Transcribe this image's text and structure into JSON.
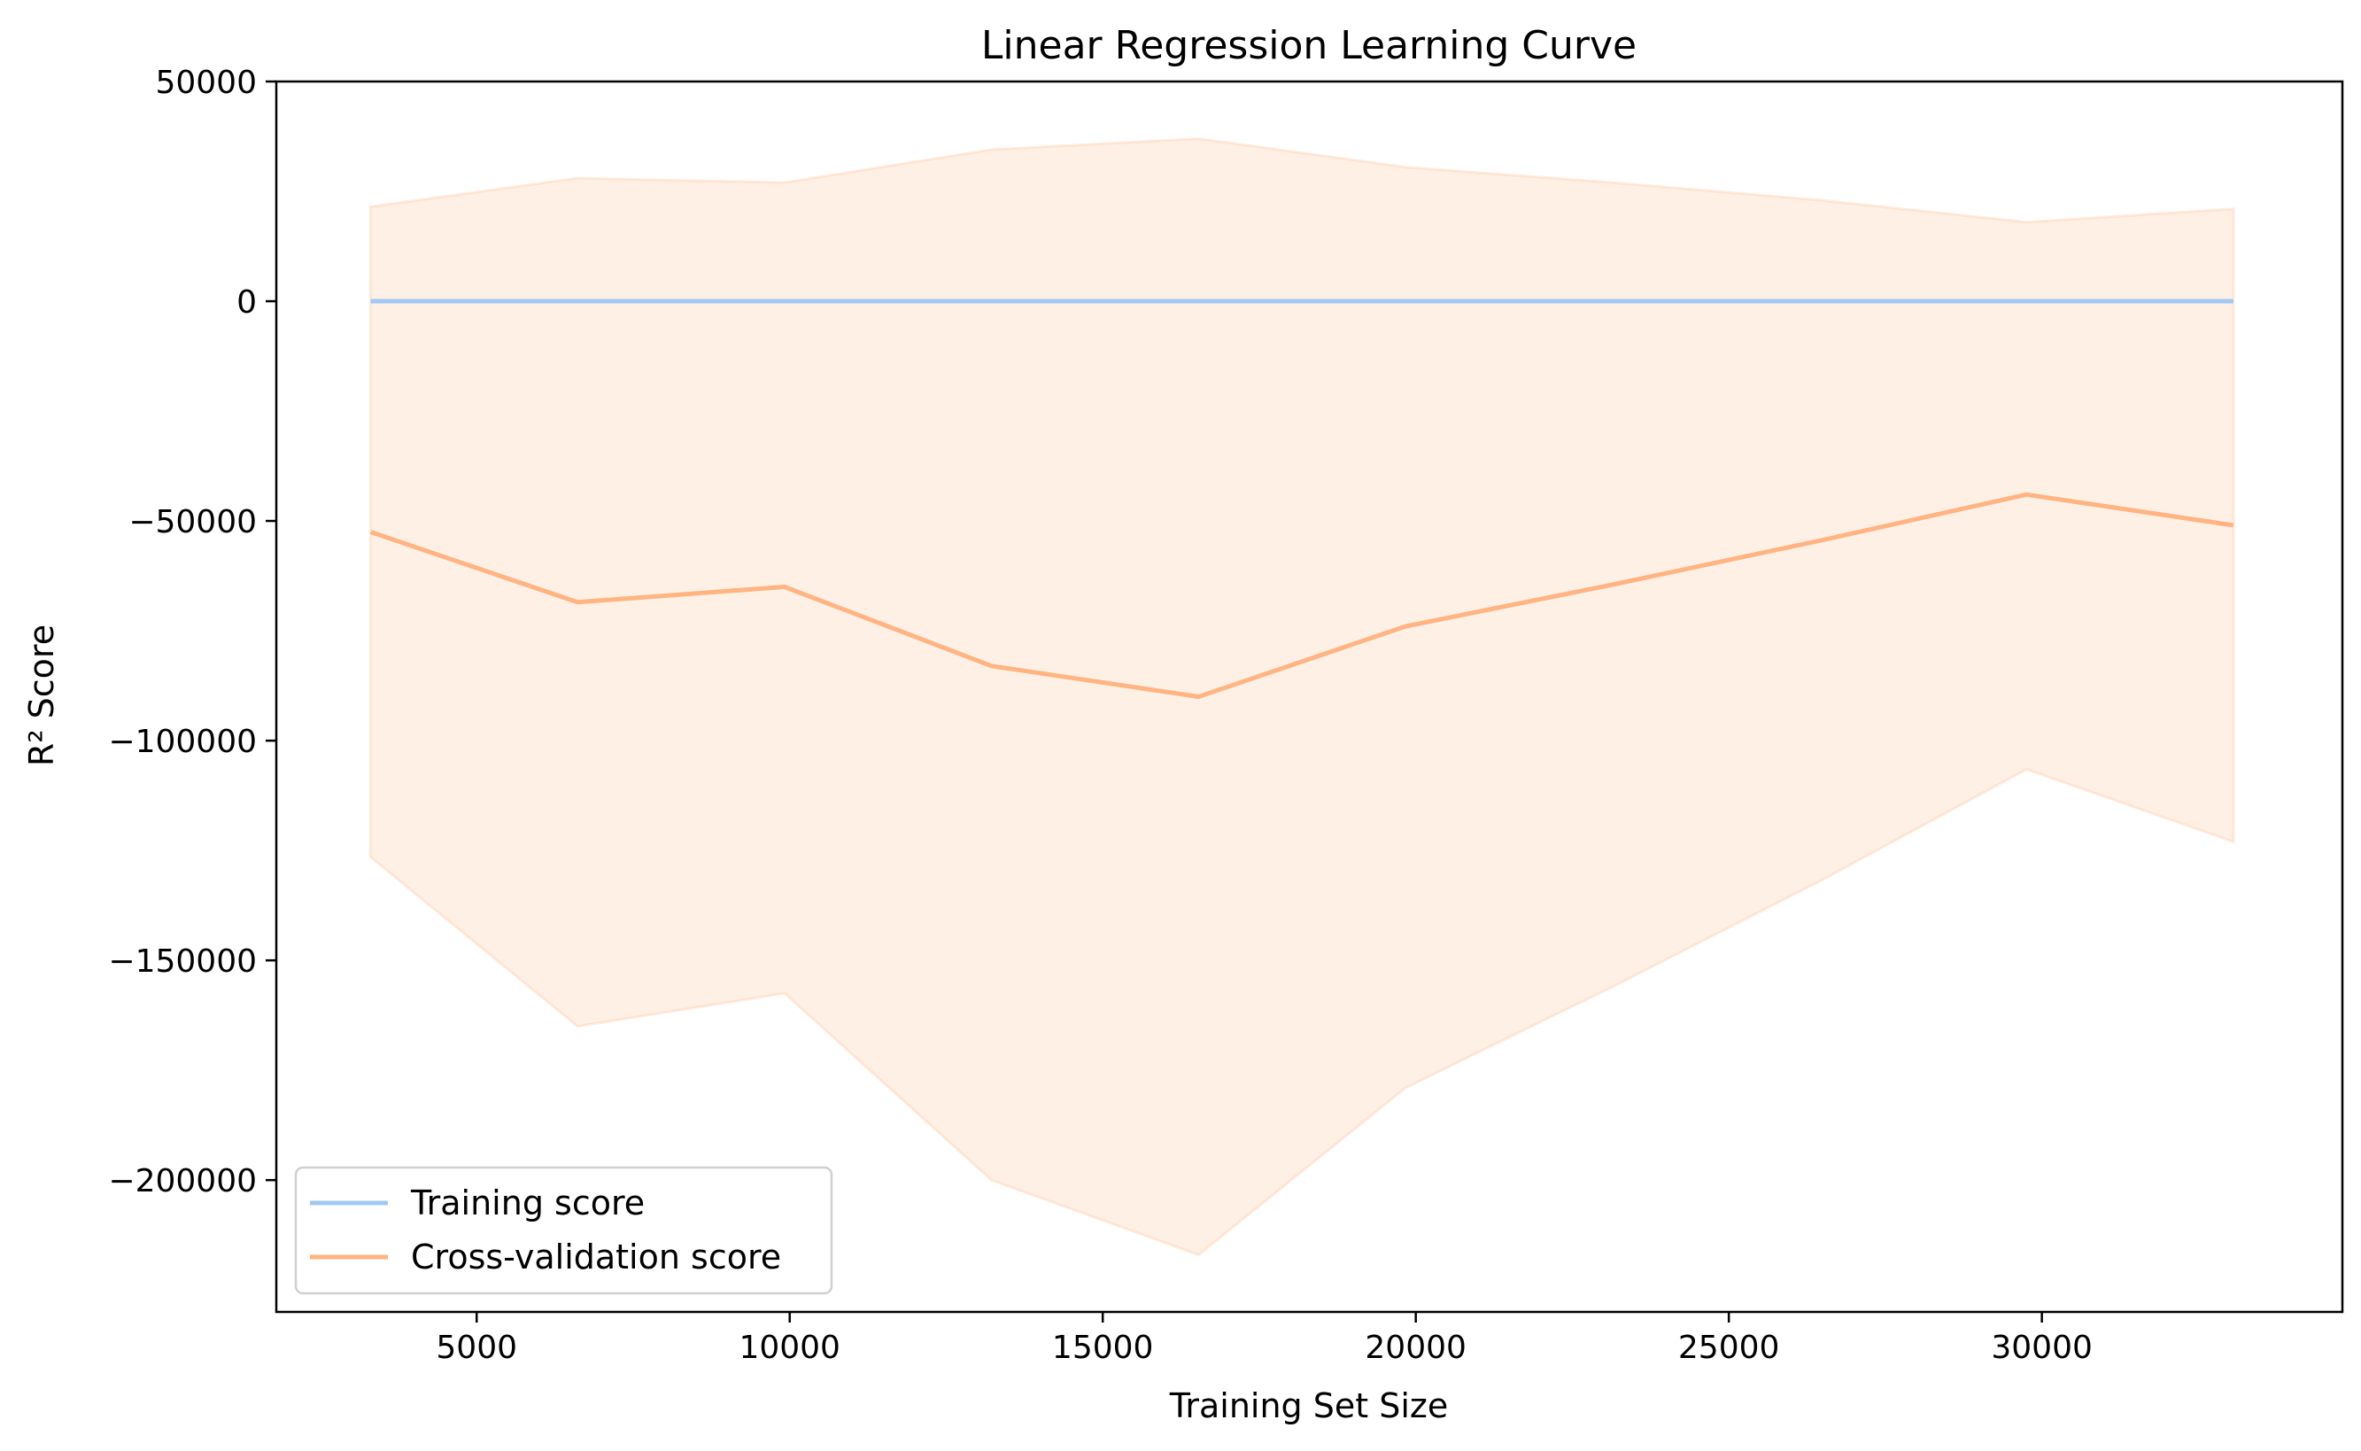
{
  "chart_data": {
    "type": "line",
    "title": "Linear Regression Learning Curve",
    "xlabel": "Training Set Size",
    "ylabel": "R² Score",
    "xlim": [
      1800,
      34800
    ],
    "ylim": [
      -230000,
      50000
    ],
    "xticks": [
      5000,
      10000,
      15000,
      20000,
      25000,
      30000
    ],
    "yticks": [
      50000,
      0,
      -50000,
      -100000,
      -150000,
      -200000
    ],
    "ytick_labels": [
      "50000",
      "0",
      "−50000",
      "−100000",
      "−150000",
      "−200000"
    ],
    "xtick_labels": [
      "5000",
      "10000",
      "15000",
      "20000",
      "25000",
      "30000"
    ],
    "grid": false,
    "legend": "lower-left",
    "x": [
      3306,
      6612,
      9918,
      13224,
      16530,
      19836,
      23142,
      26448,
      29754,
      33060
    ],
    "series": [
      {
        "name": "Training score",
        "color": "#a1c9f4",
        "values": [
          1.0,
          1.0,
          1.0,
          1.0,
          1.0,
          1.0,
          1.0,
          1.0,
          1.0,
          1.0
        ]
      },
      {
        "name": "Cross-validation score",
        "color": "#ffb482",
        "values": [
          -52500,
          -68500,
          -65000,
          -83000,
          -90000,
          -74000,
          -64500,
          -54500,
          -44000,
          -51000
        ],
        "band_upper": [
          21500,
          28000,
          27000,
          34500,
          37000,
          30500,
          27000,
          23000,
          18000,
          21000
        ],
        "band_lower": [
          -126500,
          -165000,
          -157500,
          -200000,
          -217000,
          -179000,
          -156000,
          -132000,
          -106500,
          -123000
        ],
        "band_color": "#ffb482"
      }
    ]
  }
}
